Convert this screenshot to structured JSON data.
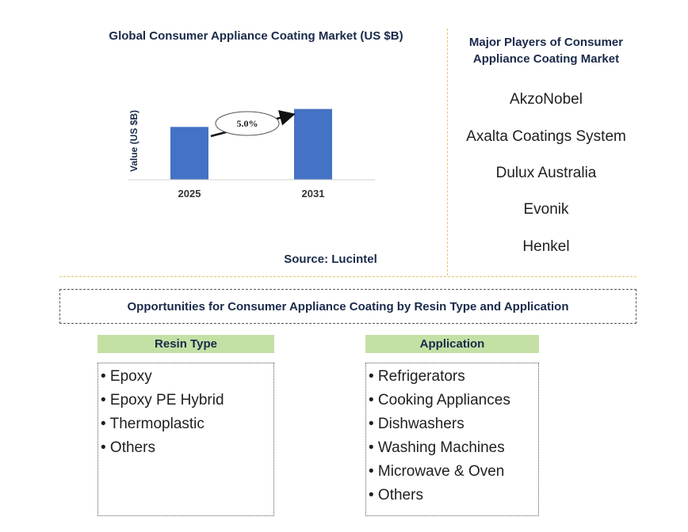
{
  "chart_data": {
    "type": "bar",
    "title": "Global Consumer Appliance Coating Market (US $B)",
    "ylabel": "Value (US $B)",
    "categories": [
      "2025",
      "2031"
    ],
    "values": [
      1.0,
      1.34
    ],
    "ylim": [
      0,
      1.5
    ],
    "annotation": "5.0%",
    "bar_color": "#4472c4",
    "source": "Source: Lucintel"
  },
  "players": {
    "title_line1": "Major Players of Consumer",
    "title_line2": "Appliance Coating Market",
    "items": [
      "AkzoNobel",
      "Axalta Coatings System",
      "Dulux Australia",
      "Evonik",
      "Henkel"
    ]
  },
  "opportunities": {
    "title": "Opportunities for Consumer Appliance Coating by Resin Type and Application"
  },
  "segments": [
    {
      "header": "Resin Type",
      "items": [
        "• Epoxy",
        "• Epoxy PE Hybrid",
        "• Thermoplastic",
        "• Others"
      ]
    },
    {
      "header": "Application",
      "items": [
        "• Refrigerators",
        "• Cooking Appliances",
        "• Dishwashers",
        "• Washing Machines",
        "• Microwave & Oven",
        "• Others"
      ]
    }
  ],
  "colors": {
    "header_fill": "#c5e0a5",
    "divider": "#e6c46a"
  }
}
